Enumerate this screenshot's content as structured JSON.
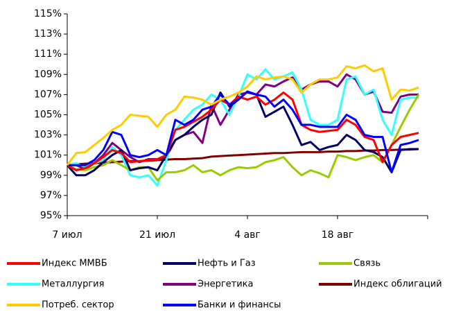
{
  "chart_data": {
    "type": "line",
    "categories": [
      "7 июл",
      null,
      null,
      null,
      null,
      null,
      null,
      null,
      null,
      null,
      "21 июл",
      null,
      null,
      null,
      null,
      null,
      null,
      null,
      null,
      null,
      "4 авг",
      null,
      null,
      null,
      null,
      null,
      null,
      null,
      null,
      null,
      "18 авг",
      null,
      null,
      null,
      null,
      null,
      null,
      null,
      null,
      null
    ],
    "ylim": [
      95,
      115
    ],
    "yticks": [
      {
        "value": 95,
        "label": "95%"
      },
      {
        "value": 97,
        "label": "97%"
      },
      {
        "value": 99,
        "label": "99%"
      },
      {
        "value": 101,
        "label": "101%"
      },
      {
        "value": 103,
        "label": "103%"
      },
      {
        "value": 105,
        "label": "105%"
      },
      {
        "value": 107,
        "label": "107%"
      },
      {
        "value": 109,
        "label": "109%"
      },
      {
        "value": 111,
        "label": "111%"
      },
      {
        "value": 113,
        "label": "113%"
      },
      {
        "value": 115,
        "label": "115%"
      }
    ],
    "series": [
      {
        "name": "Индекс ММВБ",
        "color": "#ff0000",
        "values": [
          100,
          99.5,
          99.7,
          100.2,
          100.8,
          101.5,
          101.2,
          100.3,
          100.4,
          100.5,
          100.6,
          101,
          103.5,
          103.8,
          104.3,
          104.8,
          105.5,
          106.5,
          106,
          106.8,
          106.5,
          106.8,
          106,
          106.5,
          107.2,
          106.5,
          104,
          103.5,
          103.3,
          103.4,
          103.5,
          104.5,
          104,
          102.8,
          102.5,
          100.3,
          102,
          102.8,
          103,
          103.2
        ]
      },
      {
        "name": "Нефть и Газ",
        "color": "#000066",
        "values": [
          100,
          99,
          99,
          99.5,
          100.3,
          101,
          101.5,
          99.5,
          99.7,
          99.8,
          99.5,
          101,
          102.5,
          103,
          103.8,
          104.5,
          105,
          107.2,
          105.8,
          106.5,
          107.3,
          107,
          104.8,
          105.3,
          105.8,
          104,
          102,
          102.3,
          101.5,
          101.8,
          102,
          103,
          102.5,
          101.5,
          101.3,
          100.8,
          99.3,
          101.5,
          101.6,
          101.6
        ]
      },
      {
        "name": "Связь",
        "color": "#99cc00",
        "values": [
          100,
          99.6,
          99.5,
          99.8,
          100,
          100.5,
          100,
          99.5,
          99.8,
          99.8,
          98.5,
          99.3,
          99.3,
          99.5,
          100,
          99.3,
          99.5,
          99,
          99.5,
          99.8,
          99.7,
          99.8,
          100.3,
          100.5,
          100.8,
          99.8,
          99,
          99.5,
          99.2,
          98.8,
          101,
          100.8,
          100.5,
          100.8,
          101,
          100.3,
          102,
          103.8,
          105.5,
          107
        ]
      },
      {
        "name": "Металлургия",
        "color": "#33ffff",
        "values": [
          100,
          100.2,
          99.8,
          100.2,
          100.5,
          101.8,
          101,
          99,
          98.8,
          99,
          98,
          100.5,
          103.5,
          104.5,
          105.5,
          106,
          107,
          106.5,
          105,
          106.8,
          109,
          108.5,
          109.5,
          108.5,
          108.8,
          109.2,
          107.5,
          104.5,
          104,
          104,
          104.5,
          108.5,
          108.8,
          107,
          107.5,
          104.5,
          103,
          106.5,
          106.7,
          106.7
        ]
      },
      {
        "name": "Энергетика",
        "color": "#800080",
        "values": [
          100,
          100,
          99.6,
          100.2,
          101,
          102.2,
          101.5,
          100.8,
          100.3,
          100.6,
          100.6,
          100.8,
          102.5,
          103,
          103.3,
          102.2,
          106,
          104,
          105.5,
          107,
          107.2,
          107,
          108,
          107.8,
          108.3,
          108.7,
          107.5,
          108,
          108.3,
          108.3,
          107.8,
          109,
          108.5,
          107,
          107.3,
          105.3,
          105.2,
          106.8,
          107,
          107
        ]
      },
      {
        "name": "Индекс облигаций",
        "color": "#800000",
        "values": [
          100,
          100.1,
          100.15,
          100.2,
          100.25,
          100.3,
          100.35,
          100.4,
          100.4,
          100.45,
          100.5,
          100.55,
          100.6,
          100.6,
          100.65,
          100.7,
          100.85,
          100.9,
          100.95,
          101,
          101.05,
          101.1,
          101.15,
          101.2,
          101.2,
          101.25,
          101.3,
          101.3,
          101.3,
          101.35,
          101.35,
          101.4,
          101.4,
          101.45,
          101.45,
          101.5,
          101.5,
          101.55,
          101.55,
          101.6
        ]
      },
      {
        "name": "Потреб. сектор",
        "color": "#ffcc00",
        "values": [
          100,
          101.2,
          101.3,
          102,
          102.7,
          103.5,
          104,
          105,
          104.9,
          104.8,
          103.8,
          105,
          105.5,
          106.8,
          106.7,
          106.5,
          106,
          106.5,
          106.8,
          107.2,
          107.8,
          108.8,
          108.5,
          108.7,
          108.8,
          108.5,
          107.2,
          108,
          108.5,
          108.5,
          108.7,
          109.8,
          109.6,
          109.9,
          109.3,
          109.6,
          106.5,
          107.5,
          107.4,
          107.7
        ]
      },
      {
        "name": "Банки и финансы",
        "color": "#0000ff",
        "values": [
          100,
          100,
          100,
          100.5,
          101.5,
          103.3,
          103,
          101,
          100.8,
          101,
          101.5,
          101,
          104.5,
          104,
          104.5,
          105.5,
          105.8,
          107,
          106,
          106.5,
          107.3,
          107,
          106.8,
          105.8,
          106.5,
          105.5,
          104,
          104,
          103.8,
          103.8,
          103.8,
          105,
          104.5,
          103,
          102.8,
          102.8,
          99.3,
          102,
          102.2,
          102.5
        ]
      }
    ]
  }
}
